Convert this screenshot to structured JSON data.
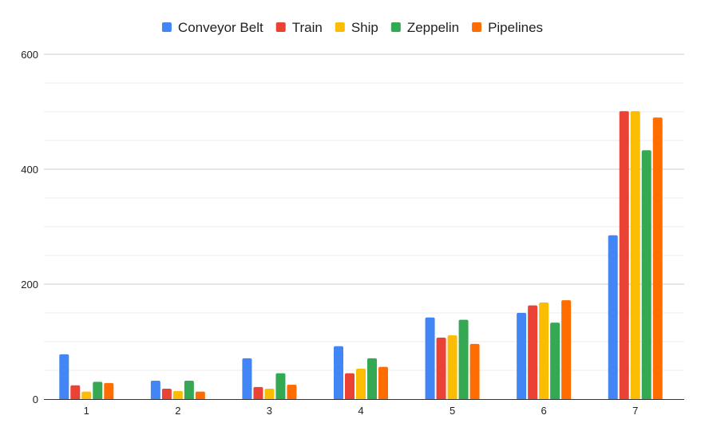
{
  "chart_data": {
    "type": "bar",
    "title": "",
    "xlabel": "",
    "ylabel": "",
    "categories": [
      "1",
      "2",
      "3",
      "4",
      "5",
      "6",
      "7"
    ],
    "ylim": [
      0,
      600
    ],
    "yticks": [
      "0",
      "200",
      "400",
      "600"
    ],
    "grid": true,
    "legend_position": "top",
    "series": [
      {
        "name": "Conveyor Belt",
        "color": "#4285F4",
        "values": [
          78,
          32,
          71,
          92,
          142,
          150,
          285
        ]
      },
      {
        "name": "Train",
        "color": "#EA4335",
        "values": [
          24,
          18,
          21,
          45,
          107,
          163,
          501
        ]
      },
      {
        "name": "Ship",
        "color": "#FBBC04",
        "values": [
          13,
          14,
          18,
          53,
          111,
          168,
          501
        ]
      },
      {
        "name": "Zeppelin",
        "color": "#34A853",
        "values": [
          30,
          32,
          45,
          71,
          138,
          133,
          433
        ]
      },
      {
        "name": "Pipelines",
        "color": "#FF6D01",
        "values": [
          28,
          13,
          25,
          56,
          96,
          172,
          490
        ]
      }
    ]
  }
}
